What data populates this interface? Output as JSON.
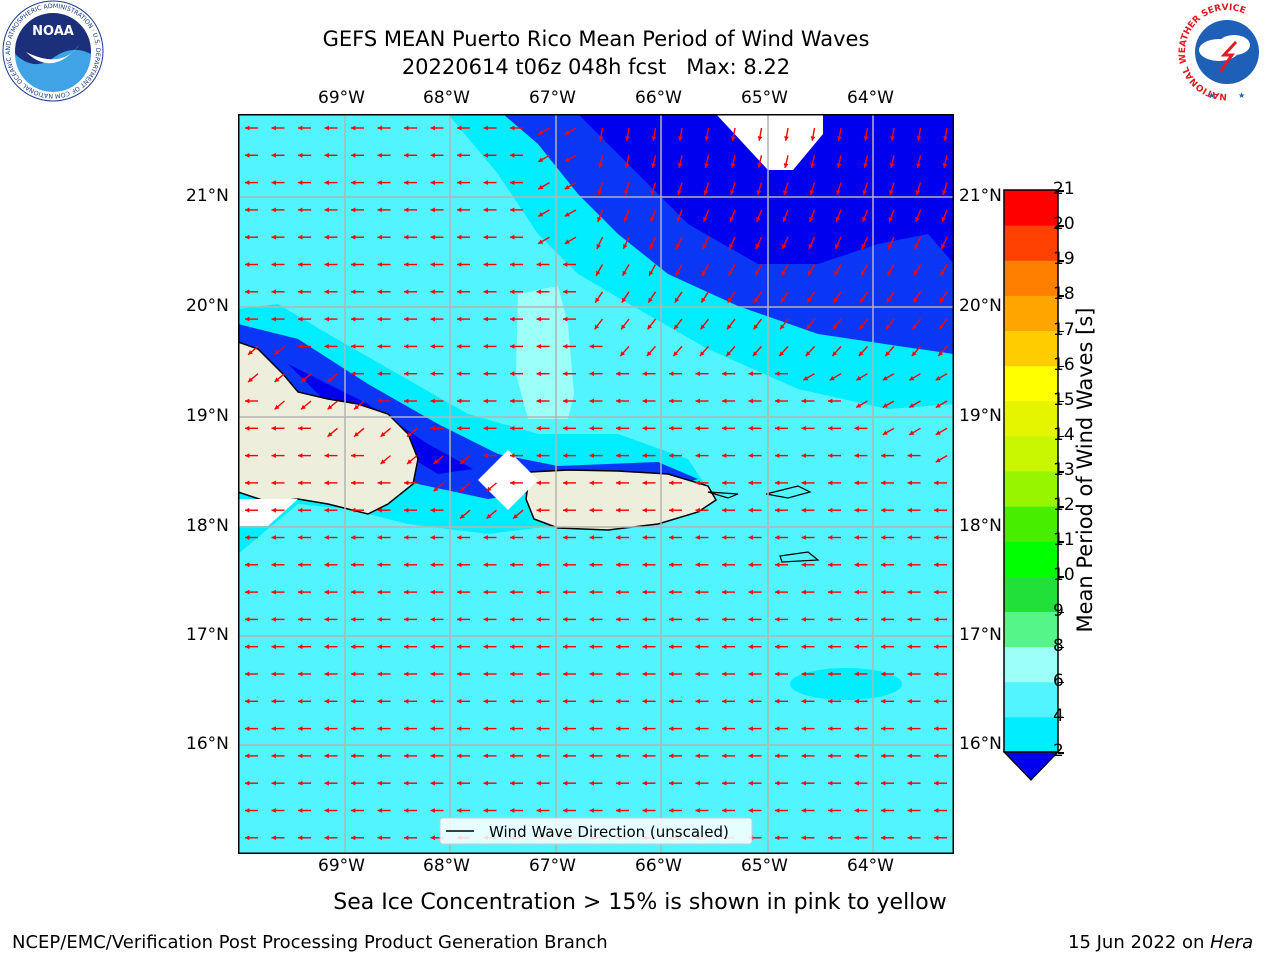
{
  "header": {
    "title_line1": "GEFS MEAN Puerto Rico Mean Period of Wind Waves",
    "title_line2": "20220614 t06z 048h fcst   Max: 8.22"
  },
  "logos": {
    "noaa_text": "NOAA",
    "noaa_ring": "NATIONAL OCEANIC AND ATMOSPHERIC ADMINISTRATION · U.S. DEPARTMENT OF COMMERCE",
    "nws_ring": "NATIONAL WEATHER SERVICE"
  },
  "map": {
    "lon_ticks": [
      "69°W",
      "68°W",
      "67°W",
      "66°W",
      "65°W",
      "64°W"
    ],
    "lat_ticks": [
      "21°N",
      "20°N",
      "19°N",
      "18°N",
      "17°N",
      "16°N"
    ],
    "legend_label": "Wind Wave Direction (unscaled)",
    "arrow_color": "#ff0000",
    "land_color": "#eeeedd"
  },
  "colorbar": {
    "label": "Mean Period of Wind Waves [s]",
    "ticks": [
      "2",
      "4",
      "6",
      "8",
      "9",
      "10",
      "11",
      "12",
      "13",
      "14",
      "15",
      "16",
      "17",
      "18",
      "19",
      "20",
      "21"
    ],
    "colors": [
      "#0a37f5",
      "#00ecff",
      "#52f5ff",
      "#9cfff8",
      "#55f58a",
      "#22e03a",
      "#00ff00",
      "#48ee00",
      "#98f500",
      "#c8f500",
      "#e5f500",
      "#ffff00",
      "#ffcc00",
      "#ffa500",
      "#ff8000",
      "#ff4000",
      "#ff0000"
    ],
    "under_color": "#0000ee"
  },
  "footer": {
    "note": "Sea Ice Concentration > 15% is shown in pink to yellow",
    "org": "NCEP/EMC/Verification Post Processing Product Generation Branch",
    "date": "15 Jun 2022 on",
    "machine": "Hera"
  }
}
